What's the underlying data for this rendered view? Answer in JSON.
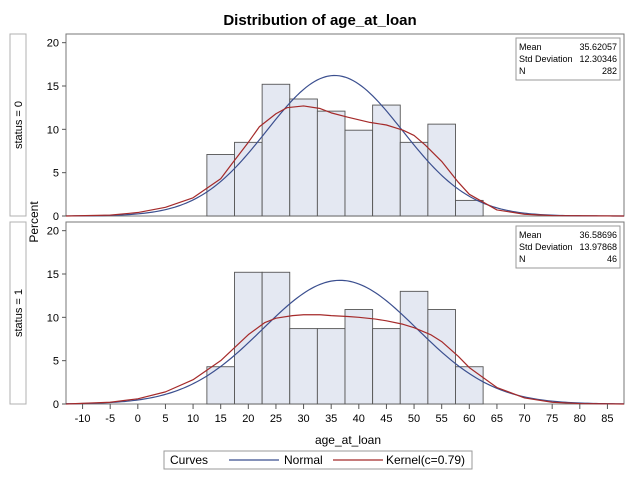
{
  "chart_data": {
    "type": "bar",
    "title": "Distribution of age_at_loan",
    "xlabel": "age_at_loan",
    "ylabel": "Percent",
    "xlim": [
      -13,
      88
    ],
    "x_ticks": [
      -10,
      -5,
      0,
      5,
      10,
      15,
      20,
      25,
      30,
      35,
      40,
      45,
      50,
      55,
      60,
      65,
      70,
      75,
      80,
      85
    ],
    "ylim": [
      0,
      21
    ],
    "y_ticks": [
      0,
      5,
      10,
      15,
      20
    ],
    "bin_width": 5,
    "bin_edges": [
      12.5,
      17.5,
      22.5,
      27.5,
      32.5,
      37.5,
      42.5,
      47.5,
      52.5,
      57.5,
      62.5
    ],
    "colors": {
      "bar_fill": "#e4e8f2",
      "bar_stroke": "#555555",
      "normal_curve": "#3b4f8f",
      "kernel_curve": "#a52a2a",
      "frame": "#777777"
    },
    "panels": [
      {
        "label": "status = 0",
        "values": [
          7.1,
          8.5,
          15.2,
          13.5,
          12.1,
          9.9,
          12.8,
          8.5,
          10.6,
          1.8
        ],
        "stats": [
          {
            "label": "Mean",
            "value": "35.62057"
          },
          {
            "label": "Std Deviation",
            "value": "12.30346"
          },
          {
            "label": "N",
            "value": "282"
          }
        ],
        "normal": {
          "mean": 35.62057,
          "sd": 12.30346
        },
        "kernel": {
          "x": [
            -13,
            -5,
            0,
            5,
            10,
            15,
            17,
            20,
            22,
            25,
            27,
            30,
            33,
            35,
            38,
            40,
            42,
            45,
            48,
            50,
            52,
            55,
            58,
            60,
            65,
            70,
            75,
            88
          ],
          "y": [
            0,
            0.1,
            0.4,
            1.0,
            2.1,
            4.3,
            6.0,
            8.5,
            10.3,
            11.8,
            12.5,
            12.7,
            12.4,
            11.9,
            11.4,
            11.1,
            10.8,
            10.5,
            9.9,
            9.3,
            8.2,
            6.3,
            3.9,
            2.5,
            0.7,
            0.2,
            0.05,
            0
          ]
        }
      },
      {
        "label": "status = 1",
        "values": [
          4.3,
          15.2,
          15.2,
          8.7,
          8.7,
          10.9,
          8.7,
          13.0,
          10.9,
          4.3
        ],
        "stats": [
          {
            "label": "Mean",
            "value": "36.58696"
          },
          {
            "label": "Std Deviation",
            "value": "13.97868"
          },
          {
            "label": "N",
            "value": "46"
          }
        ],
        "normal": {
          "mean": 36.58696,
          "sd": 13.97868
        },
        "kernel": {
          "x": [
            -13,
            -5,
            0,
            5,
            10,
            15,
            18,
            20,
            23,
            25,
            28,
            30,
            33,
            35,
            38,
            40,
            43,
            45,
            48,
            50,
            53,
            55,
            58,
            60,
            65,
            70,
            75,
            80,
            88
          ],
          "y": [
            0,
            0.2,
            0.6,
            1.4,
            2.8,
            5.0,
            6.8,
            8.0,
            9.4,
            9.9,
            10.2,
            10.3,
            10.3,
            10.2,
            10.1,
            10.0,
            9.8,
            9.6,
            9.2,
            8.8,
            8.0,
            7.2,
            5.5,
            4.2,
            1.9,
            0.7,
            0.2,
            0.05,
            0
          ]
        }
      }
    ],
    "legend": {
      "title": "Curves",
      "entries": [
        {
          "label": "Normal",
          "color": "#3b4f8f"
        },
        {
          "label": "Kernel(c=0.79)",
          "color": "#a52a2a"
        }
      ]
    }
  }
}
